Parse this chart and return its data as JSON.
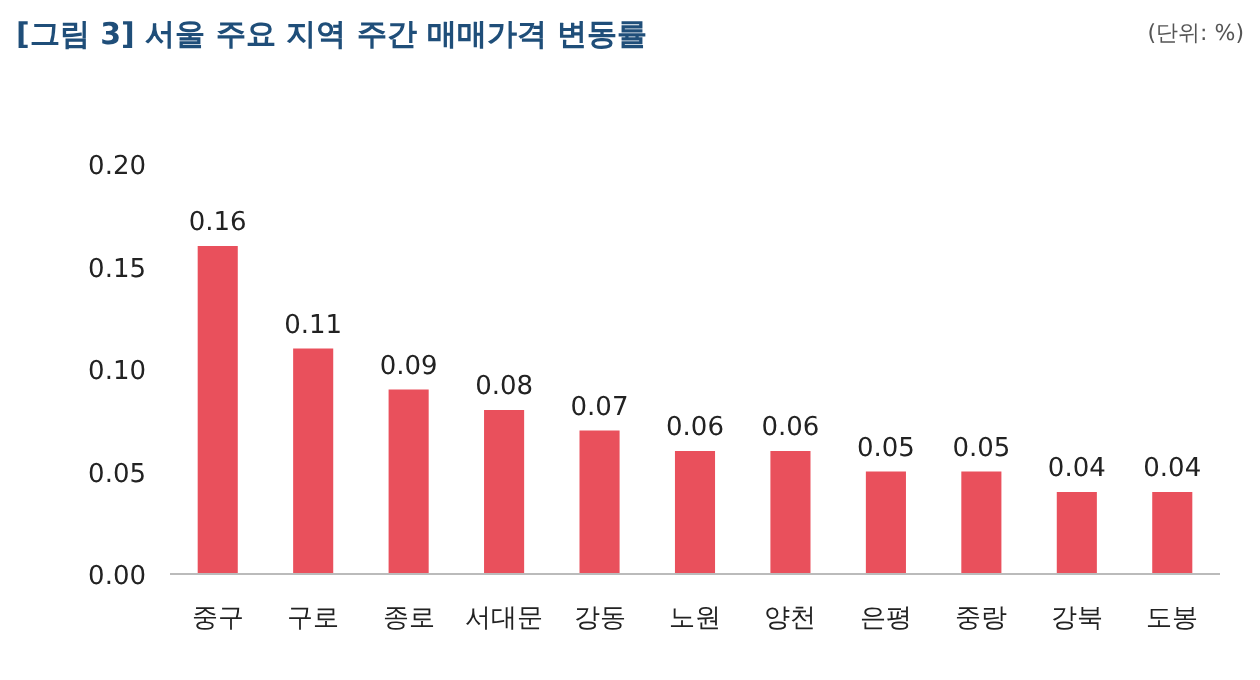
{
  "chart_data": {
    "type": "bar",
    "title": "[그림 3] 서울 주요 지역 주간 매매가격 변동률",
    "annotations": [
      "(단위: %)"
    ],
    "categories": [
      "중구",
      "구로",
      "종로",
      "서대문",
      "강동",
      "노원",
      "양천",
      "은평",
      "중랑",
      "강북",
      "도봉"
    ],
    "values": [
      0.16,
      0.11,
      0.09,
      0.08,
      0.07,
      0.06,
      0.06,
      0.05,
      0.05,
      0.04,
      0.04
    ],
    "color": "#e9505c",
    "ylim": [
      0,
      0.2
    ],
    "yticks": [
      {
        "value": 0,
        "label": "0.00"
      },
      {
        "value": 0.05,
        "label": "0.05"
      },
      {
        "value": 0.1,
        "label": "0.10"
      },
      {
        "value": 0.15,
        "label": "0.15"
      },
      {
        "value": 0.2,
        "label": "0.20"
      }
    ],
    "grid": false,
    "data_labels": true
  }
}
